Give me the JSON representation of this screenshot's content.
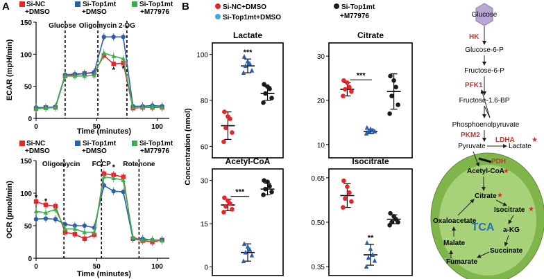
{
  "panel_labels": [
    "A",
    "B"
  ],
  "colors": {
    "red": "#e8242b",
    "blue": "#2a5fb0",
    "green": "#35b34a",
    "black": "#1a1a1a",
    "lightblue": "#3aa7e0",
    "darkred": "#c0392b",
    "tca_text": "#2a6fb0",
    "mito": "#7fb54a",
    "glucose_fill": "#b8a6d6"
  },
  "chart_data": [
    {
      "id": "ecar",
      "type": "line",
      "legend": [
        "Si-NC\n+DMSO",
        "Si-Top1mt\n+DMSO",
        "Si-Top1mt\n+M77976"
      ],
      "ylabel": "ECAR (mpH/min)",
      "xlabel": "Time (minutes)",
      "xlim": [
        0,
        110
      ],
      "ylim": [
        0,
        150
      ],
      "xticks": [
        0,
        50,
        100
      ],
      "yticks": [
        0,
        50,
        100,
        150
      ],
      "injections": [
        {
          "x": 24,
          "label": "Glucose"
        },
        {
          "x": 51,
          "label": "Oligomycin"
        },
        {
          "x": 75,
          "label": "2-DG"
        }
      ],
      "x": [
        0,
        8,
        16,
        24,
        32,
        40,
        48,
        56,
        64,
        72,
        80,
        88,
        96,
        104
      ],
      "series": [
        {
          "name": "Si-NC+DMSO",
          "color": "red",
          "marker": "square",
          "values": [
            15,
            17,
            17,
            66,
            68,
            70,
            71,
            98,
            85,
            86,
            16,
            17,
            17,
            17
          ]
        },
        {
          "name": "Si-Top1mt+DMSO",
          "color": "blue",
          "marker": "circle",
          "values": [
            17,
            17,
            18,
            68,
            69,
            70,
            72,
            127,
            127,
            127,
            19,
            19,
            20,
            19
          ]
        },
        {
          "name": "Si-Top1mt+M77976",
          "color": "green",
          "marker": "triangle",
          "values": [
            15,
            16,
            17,
            66,
            66,
            66,
            67,
            102,
            97,
            93,
            17,
            17,
            18,
            17
          ]
        }
      ],
      "annotations": [
        {
          "x": 64,
          "y": 72,
          "text": "*"
        },
        {
          "x": 72,
          "y": 74,
          "text": "*"
        }
      ]
    },
    {
      "id": "ocr",
      "type": "line",
      "legend": [
        "Si-NC\n+DMSO",
        "Si-Top1mt\n+DMSO",
        "Si-Top1mt\n+M77976"
      ],
      "ylabel": "OCR (pmol/min)",
      "xlabel": "Time (minutes)",
      "xlim": [
        0,
        110
      ],
      "ylim": [
        0,
        150
      ],
      "xticks": [
        0,
        50,
        100
      ],
      "yticks": [
        0,
        50,
        100,
        150
      ],
      "injections": [
        {
          "x": 23,
          "label": "Oligomycin"
        },
        {
          "x": 54,
          "label": "FCCP"
        },
        {
          "x": 85,
          "label": "Rotenone"
        }
      ],
      "x": [
        0,
        8,
        16,
        24,
        32,
        40,
        48,
        56,
        64,
        72,
        80,
        88,
        96,
        104
      ],
      "series": [
        {
          "name": "Si-NC+DMSO",
          "color": "red",
          "marker": "square",
          "values": [
            87,
            82,
            80,
            40,
            37,
            30,
            36,
            130,
            128,
            125,
            30,
            27,
            25,
            28
          ]
        },
        {
          "name": "Si-Top1mt+DMSO",
          "color": "blue",
          "marker": "circle",
          "values": [
            60,
            61,
            60,
            52,
            50,
            50,
            47,
            112,
            103,
            102,
            30,
            30,
            28,
            28
          ]
        },
        {
          "name": "Si-Top1mt+M77976",
          "color": "green",
          "marker": "triangle",
          "values": [
            72,
            70,
            75,
            45,
            45,
            40,
            40,
            125,
            123,
            120,
            32,
            28,
            28,
            27
          ]
        }
      ],
      "annotations": [
        {
          "x": 0,
          "y": 90,
          "text": "*"
        },
        {
          "x": 8,
          "y": 84,
          "text": "*"
        },
        {
          "x": 64,
          "y": 136,
          "text": "*"
        }
      ]
    },
    {
      "id": "lactate",
      "type": "scatter",
      "title": "Lactate",
      "ylim": [
        55,
        105
      ],
      "yticks": [
        60,
        80,
        100
      ],
      "groups": [
        {
          "color": "red",
          "marker": "circle",
          "points": [
            62,
            66,
            68,
            72,
            73,
            75
          ],
          "mean": 69,
          "sd": 6
        },
        {
          "color": "blue",
          "marker": "triangle",
          "points": [
            92,
            93,
            95,
            96,
            97,
            99
          ],
          "mean": 95,
          "sd": 3
        },
        {
          "color": "black",
          "marker": "circle",
          "points": [
            79,
            81,
            83,
            85,
            86,
            87
          ],
          "mean": 83,
          "sd": 3
        }
      ],
      "sig": "***"
    },
    {
      "id": "citrate",
      "type": "scatter",
      "title": "Citrate",
      "ylim": [
        7,
        33
      ],
      "yticks": [
        10,
        20,
        30
      ],
      "groups": [
        {
          "color": "red",
          "marker": "circle",
          "points": [
            21,
            22,
            22.5,
            23,
            24,
            24.5
          ],
          "mean": 22.5,
          "sd": 1.5
        },
        {
          "color": "blue",
          "marker": "triangle",
          "points": [
            12.5,
            13,
            13,
            13.2,
            13.5,
            13.8
          ],
          "mean": 13,
          "sd": 0.5
        },
        {
          "color": "black",
          "marker": "circle",
          "points": [
            17,
            19,
            21,
            23,
            24.5,
            25.5
          ],
          "mean": 22,
          "sd": 4
        }
      ],
      "sig": "***"
    },
    {
      "id": "acetylcoa",
      "type": "scatter",
      "title": "Acetyl-CoA",
      "ylim": [
        -3,
        34
      ],
      "yticks": [
        0,
        15,
        30
      ],
      "groups": [
        {
          "color": "red",
          "marker": "circle",
          "points": [
            19,
            20,
            21,
            22,
            23,
            24
          ],
          "mean": 21.5,
          "sd": 2
        },
        {
          "color": "blue",
          "marker": "triangle",
          "points": [
            2,
            4,
            5,
            6,
            7,
            8
          ],
          "mean": 5,
          "sd": 3
        },
        {
          "color": "black",
          "marker": "circle",
          "points": [
            25,
            26,
            27,
            28,
            29.5,
            30
          ],
          "mean": 27,
          "sd": 2
        }
      ],
      "sig": "***"
    },
    {
      "id": "isocitrate",
      "type": "scatter",
      "title": "Isocitrate",
      "ylim": [
        0.32,
        0.68
      ],
      "yticks": [
        0.35,
        0.5,
        0.65
      ],
      "ytick_labels": [
        "0.35",
        "0.50",
        "0.65"
      ],
      "groups": [
        {
          "color": "red",
          "marker": "circle",
          "points": [
            0.55,
            0.57,
            0.58,
            0.6,
            0.62,
            0.64
          ],
          "mean": 0.59,
          "sd": 0.04
        },
        {
          "color": "blue",
          "marker": "triangle",
          "points": [
            0.35,
            0.37,
            0.38,
            0.39,
            0.41,
            0.43
          ],
          "mean": 0.39,
          "sd": 0.035
        },
        {
          "color": "black",
          "marker": "circle",
          "points": [
            0.49,
            0.5,
            0.5,
            0.51,
            0.52,
            0.53
          ],
          "mean": 0.51,
          "sd": 0.015
        }
      ],
      "sig": "**"
    }
  ],
  "panel_b": {
    "ylabel": "Concentration (nmol)",
    "legend": [
      {
        "label": "Si-NC+DMSO",
        "color": "red"
      },
      {
        "label": "Si-Top1mt+DMSO",
        "color": "lightblue"
      },
      {
        "label": "Si-Top1mt\n+M77976",
        "color": "black"
      }
    ]
  },
  "pathway": {
    "glucose": "Glucose",
    "steps": [
      "Glucose-6-P",
      "Fructose-6-P",
      "Fructose-1,6-BP",
      "Phosphoenolpyruvate",
      "Pyruvate",
      "Lactate"
    ],
    "enzymes": [
      "HK",
      "PFK1",
      "PKM2",
      "LDHA",
      "PDH"
    ],
    "tca_label": "TCA",
    "tca_metabolites": [
      "Acetyl-CoA",
      "Citrate",
      "Isocitrate",
      "a-KG",
      "Succinate",
      "Fumarate",
      "Malate",
      "Oxaloacetate"
    ],
    "star": "★"
  }
}
